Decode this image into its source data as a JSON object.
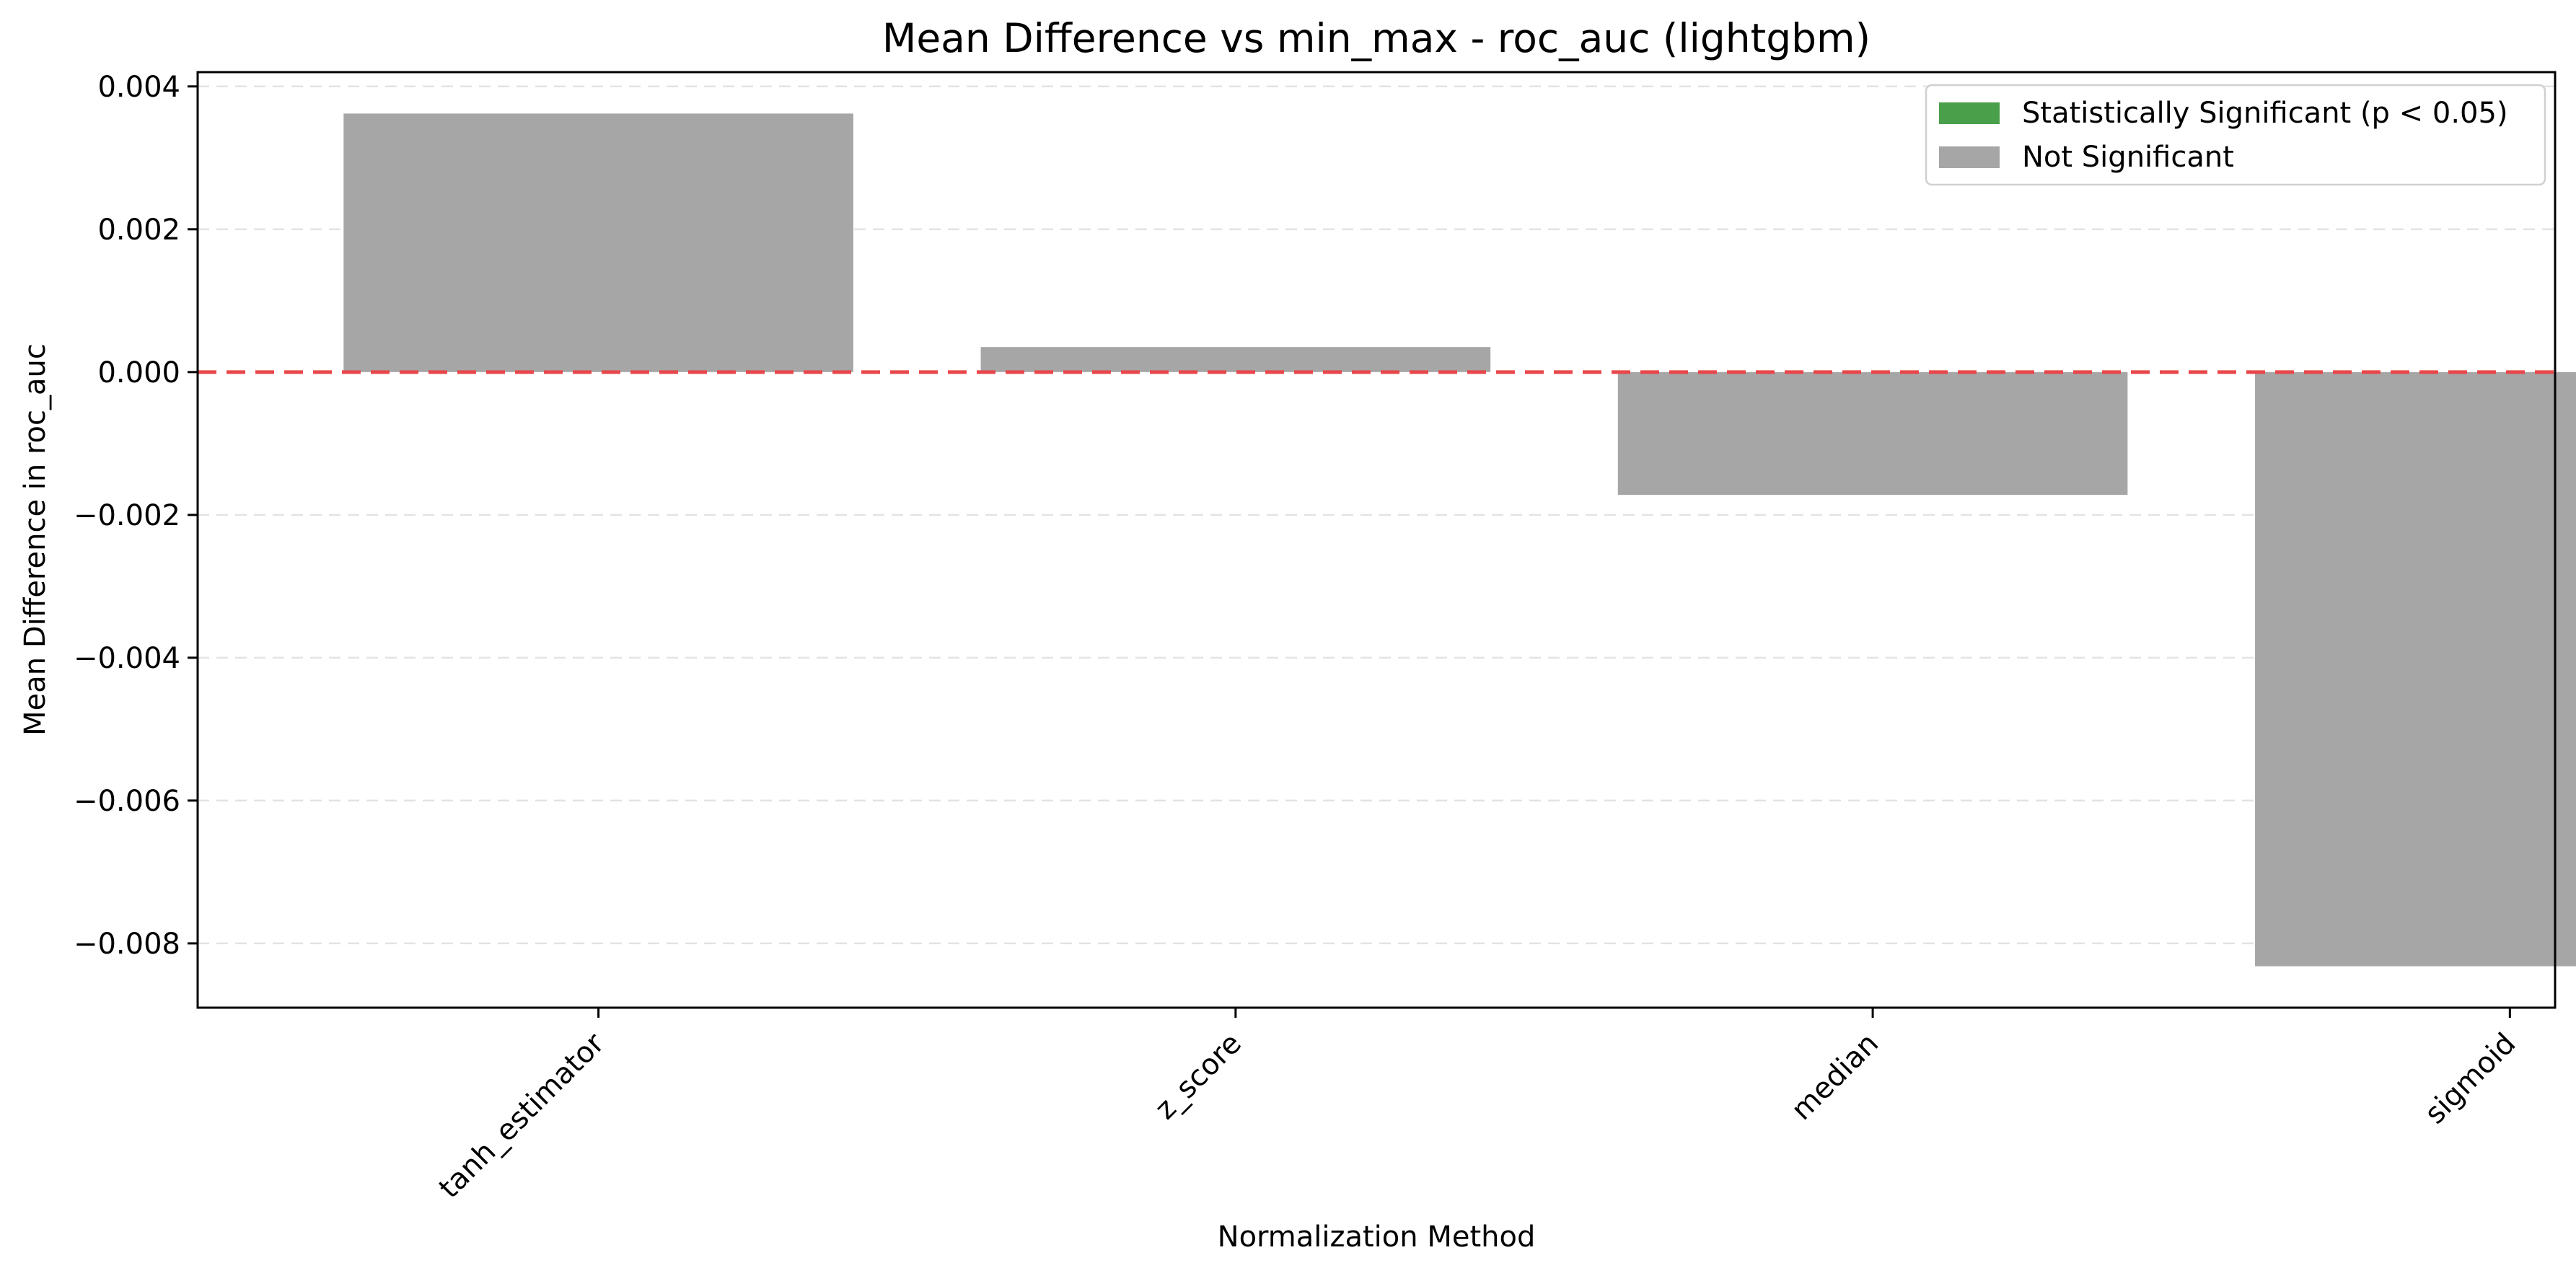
{
  "chart_data": {
    "type": "bar",
    "title": "Mean Difference vs min_max - roc_auc (lightgbm)",
    "xlabel": "Normalization Method",
    "ylabel": "Mean Difference in roc_auc",
    "categories": [
      "tanh_estimator",
      "z_score",
      "median",
      "sigmoid"
    ],
    "values": [
      0.00362,
      0.00035,
      -0.00172,
      -0.00832
    ],
    "significant": [
      false,
      false,
      false,
      false
    ],
    "ylim": [
      -0.0089,
      0.0042
    ],
    "yticks": [
      0.004,
      0.002,
      0.0,
      -0.002,
      -0.004,
      -0.006,
      -0.008
    ],
    "ytick_labels": [
      "0.004",
      "0.002",
      "0.000",
      "−0.002",
      "−0.004",
      "−0.006",
      "−0.008"
    ],
    "reference_line": 0,
    "grid": "y-dashed",
    "legend": {
      "placement": "top-right",
      "entries": [
        {
          "label": "Statistically Significant (p < 0.05)",
          "color": "#4aa04a"
        },
        {
          "label": "Not Significant",
          "color": "#a6a6a6"
        }
      ]
    },
    "colors": {
      "significant": "#4aa04a",
      "not_significant": "#a6a6a6",
      "reference_line": "#e8474b",
      "grid": "#e3e3e3"
    }
  }
}
